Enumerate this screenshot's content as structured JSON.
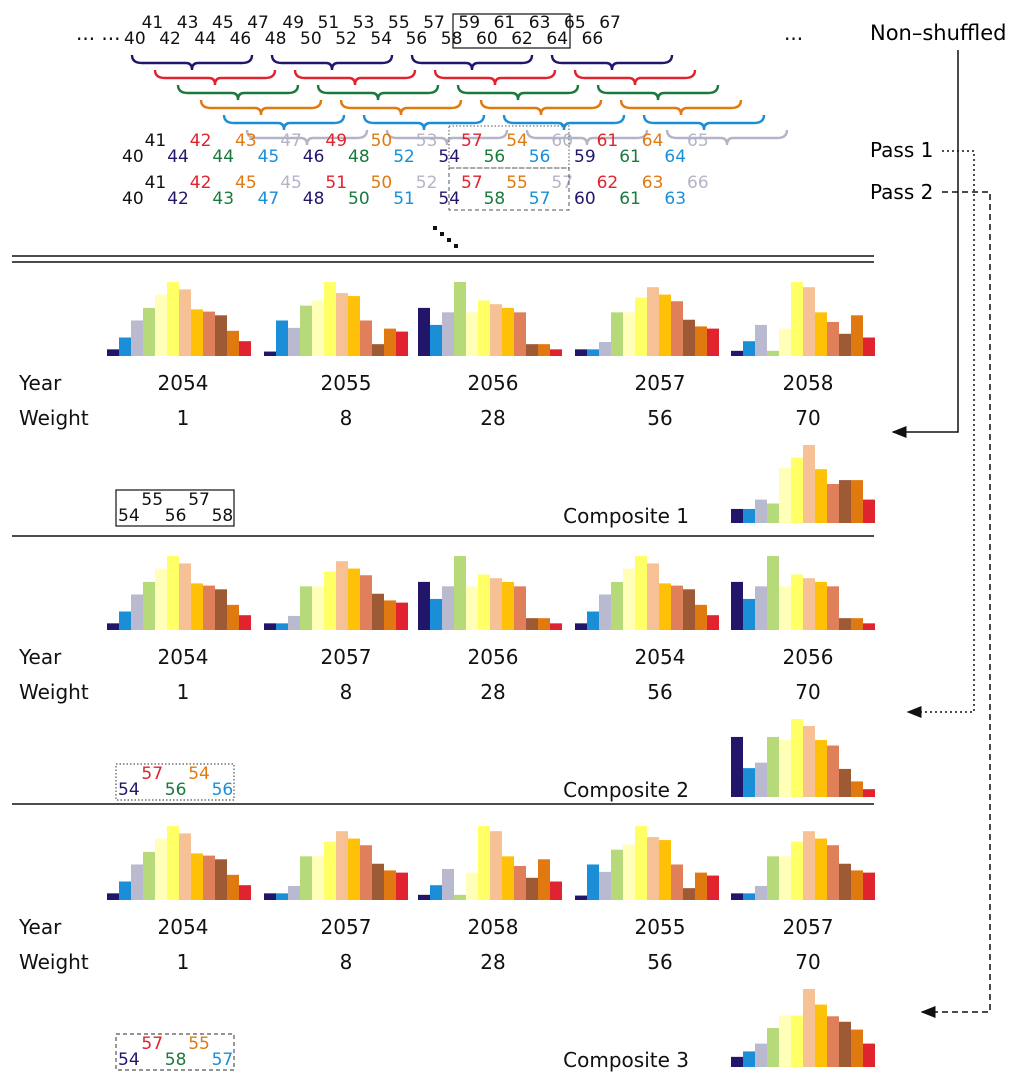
{
  "colors": {
    "c1": "#22166b",
    "c2": "#1a8fd8",
    "c3": "#b9b9cf",
    "c4": "#b6da7a",
    "c5": "#ffffb8",
    "c6": "#ffff66",
    "c7": "#f6c195",
    "c8": "#ffc107",
    "c9": "#e0805a",
    "c10": "#9e5a35",
    "c11": "#e07a10",
    "c12": "#e0232e",
    "navy": "#22166b",
    "red": "#e0232e",
    "green": "#1a7a3c",
    "orange": "#e07a10",
    "blue": "#1a8fd8",
    "gray": "#b4b4c8"
  },
  "sequence": {
    "leading_ellipsis": "... ...",
    "trailing_ellipsis": "...",
    "numbers": [
      "40",
      "41",
      "42",
      "43",
      "44",
      "45",
      "46",
      "47",
      "48",
      "49",
      "50",
      "51",
      "52",
      "53",
      "54",
      "55",
      "56",
      "57",
      "58",
      "59",
      "60",
      "61",
      "62",
      "63",
      "64",
      "65",
      "66",
      "67"
    ],
    "non_shuffled_label": "Non–shuffled",
    "brace_colors": [
      "navy",
      "red",
      "green",
      "orange",
      "blue",
      "gray"
    ]
  },
  "pass1": {
    "label": "Pass 1",
    "numbers": [
      {
        "v": "40",
        "c": "black"
      },
      {
        "v": "41",
        "c": "black"
      },
      {
        "v": "44",
        "c": "navy"
      },
      {
        "v": "42",
        "c": "red"
      },
      {
        "v": "44",
        "c": "green"
      },
      {
        "v": "43",
        "c": "orange"
      },
      {
        "v": "45",
        "c": "blue"
      },
      {
        "v": "47",
        "c": "gray"
      },
      {
        "v": "46",
        "c": "navy"
      },
      {
        "v": "49",
        "c": "red"
      },
      {
        "v": "48",
        "c": "green"
      },
      {
        "v": "50",
        "c": "orange"
      },
      {
        "v": "52",
        "c": "blue"
      },
      {
        "v": "53",
        "c": "gray"
      },
      {
        "v": "54",
        "c": "navy"
      },
      {
        "v": "57",
        "c": "red"
      },
      {
        "v": "56",
        "c": "green"
      },
      {
        "v": "54",
        "c": "orange"
      },
      {
        "v": "56",
        "c": "blue"
      },
      {
        "v": "60",
        "c": "gray"
      },
      {
        "v": "59",
        "c": "navy"
      },
      {
        "v": "61",
        "c": "red"
      },
      {
        "v": "61",
        "c": "green"
      },
      {
        "v": "64",
        "c": "orange"
      },
      {
        "v": "64",
        "c": "blue"
      },
      {
        "v": "65",
        "c": "gray"
      }
    ]
  },
  "pass2": {
    "label": "Pass 2",
    "numbers": [
      {
        "v": "40",
        "c": "black"
      },
      {
        "v": "41",
        "c": "black"
      },
      {
        "v": "42",
        "c": "navy"
      },
      {
        "v": "42",
        "c": "red"
      },
      {
        "v": "43",
        "c": "green"
      },
      {
        "v": "45",
        "c": "orange"
      },
      {
        "v": "47",
        "c": "blue"
      },
      {
        "v": "45",
        "c": "gray"
      },
      {
        "v": "48",
        "c": "navy"
      },
      {
        "v": "51",
        "c": "red"
      },
      {
        "v": "50",
        "c": "green"
      },
      {
        "v": "50",
        "c": "orange"
      },
      {
        "v": "51",
        "c": "blue"
      },
      {
        "v": "52",
        "c": "gray"
      },
      {
        "v": "54",
        "c": "navy"
      },
      {
        "v": "57",
        "c": "red"
      },
      {
        "v": "58",
        "c": "green"
      },
      {
        "v": "55",
        "c": "orange"
      },
      {
        "v": "57",
        "c": "blue"
      },
      {
        "v": "57",
        "c": "gray"
      },
      {
        "v": "60",
        "c": "navy"
      },
      {
        "v": "62",
        "c": "red"
      },
      {
        "v": "61",
        "c": "green"
      },
      {
        "v": "63",
        "c": "orange"
      },
      {
        "v": "63",
        "c": "blue"
      },
      {
        "v": "66",
        "c": "gray"
      }
    ]
  },
  "labels": {
    "year": "Year",
    "weight": "Weight"
  },
  "weights": [
    "1",
    "8",
    "28",
    "56",
    "70"
  ],
  "sections": [
    {
      "composite_label": "Composite 1",
      "years": [
        "2054",
        "2055",
        "2056",
        "2057",
        "2058"
      ],
      "key": [
        {
          "v": "54",
          "c": "black"
        },
        {
          "v": "55",
          "c": "black"
        },
        {
          "v": "56",
          "c": "black"
        },
        {
          "v": "57",
          "c": "black"
        },
        {
          "v": "58",
          "c": "black"
        }
      ],
      "key_style": "solid"
    },
    {
      "composite_label": "Composite 2",
      "years": [
        "2054",
        "2057",
        "2056",
        "2054",
        "2056"
      ],
      "key": [
        {
          "v": "54",
          "c": "navy"
        },
        {
          "v": "57",
          "c": "red"
        },
        {
          "v": "56",
          "c": "green"
        },
        {
          "v": "54",
          "c": "orange"
        },
        {
          "v": "56",
          "c": "blue"
        }
      ],
      "key_style": "dotted"
    },
    {
      "composite_label": "Composite 3",
      "years": [
        "2054",
        "2057",
        "2058",
        "2055",
        "2057"
      ],
      "key": [
        {
          "v": "54",
          "c": "navy"
        },
        {
          "v": "57",
          "c": "red"
        },
        {
          "v": "58",
          "c": "green"
        },
        {
          "v": "55",
          "c": "orange"
        },
        {
          "v": "57",
          "c": "blue"
        }
      ],
      "key_style": "dashed"
    }
  ],
  "chart_data": {
    "type": "bar",
    "note": "Bar heights are relative (0-1) values for 12 colored categories per year histogram",
    "bar_colors": [
      "c1",
      "c2",
      "c3",
      "c4",
      "c5",
      "c6",
      "c7",
      "c8",
      "c9",
      "c10",
      "c11",
      "c12"
    ],
    "years": {
      "2054": [
        0.09,
        0.25,
        0.48,
        0.65,
        0.83,
        1.0,
        0.9,
        0.63,
        0.6,
        0.55,
        0.34,
        0.2
      ],
      "2055": [
        0.06,
        0.48,
        0.38,
        0.68,
        0.75,
        1.0,
        0.85,
        0.81,
        0.48,
        0.16,
        0.37,
        0.33
      ],
      "2056": [
        0.65,
        0.42,
        0.59,
        1.0,
        0.59,
        0.75,
        0.7,
        0.65,
        0.59,
        0.16,
        0.16,
        0.09
      ],
      "2057": [
        0.09,
        0.09,
        0.19,
        0.59,
        0.59,
        0.79,
        0.93,
        0.83,
        0.74,
        0.49,
        0.4,
        0.37
      ],
      "2058": [
        0.07,
        0.2,
        0.42,
        0.07,
        0.37,
        1.0,
        0.93,
        0.59,
        0.46,
        0.3,
        0.55,
        0.25
      ],
      "composite_1": [
        0.18,
        0.18,
        0.3,
        0.25,
        0.71,
        0.84,
        1.0,
        0.69,
        0.5,
        0.55,
        0.55,
        0.3
      ],
      "composite_2": [
        0.77,
        0.37,
        0.44,
        0.77,
        0.73,
        1.0,
        0.91,
        0.73,
        0.66,
        0.36,
        0.2,
        0.1
      ],
      "composite_3": [
        0.13,
        0.2,
        0.3,
        0.5,
        0.66,
        0.66,
        1.0,
        0.8,
        0.65,
        0.58,
        0.48,
        0.3
      ]
    }
  }
}
